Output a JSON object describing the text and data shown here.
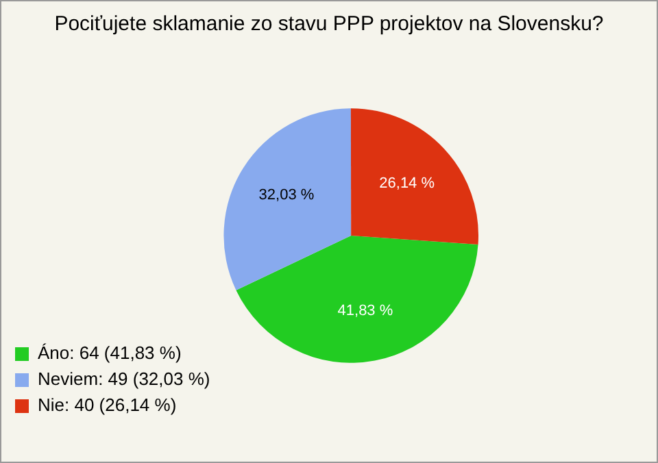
{
  "chart_data": {
    "type": "pie",
    "title": "Pociťujete sklamanie zo stavu PPP projektov na Slovensku?",
    "categories": [
      "Áno: 64 (41,83 %)",
      "Neviem: 49 (32,03 %)",
      "Nie: 40 (26,14 %)"
    ],
    "values": [
      41.83,
      32.03,
      26.14
    ],
    "colors": [
      "#22cc22",
      "#88aaee",
      "#dd3311"
    ],
    "value_labels": [
      "41,83 %",
      "32,03 %",
      "26,14 %"
    ],
    "legend": "bottom left"
  }
}
